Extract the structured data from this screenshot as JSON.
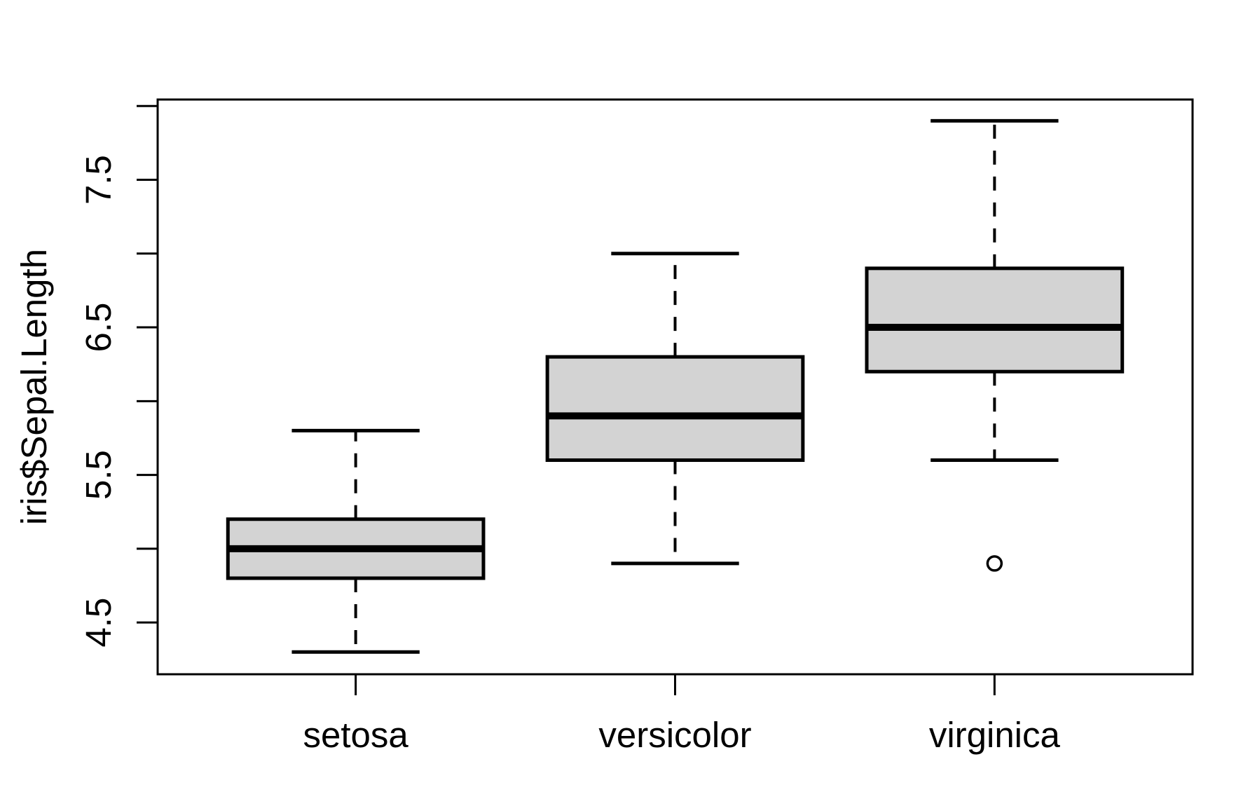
{
  "chart_data": {
    "type": "boxplot",
    "title": "",
    "xlabel": "",
    "ylabel": "iris$Sepal.Length",
    "categories": [
      "setosa",
      "versicolor",
      "virginica"
    ],
    "series": [
      {
        "name": "setosa",
        "lower_whisker": 4.3,
        "q1": 4.8,
        "median": 5.0,
        "q3": 5.2,
        "upper_whisker": 5.8,
        "outliers": []
      },
      {
        "name": "versicolor",
        "lower_whisker": 4.9,
        "q1": 5.6,
        "median": 5.9,
        "q3": 6.3,
        "upper_whisker": 7.0,
        "outliers": []
      },
      {
        "name": "virginica",
        "lower_whisker": 5.6,
        "q1": 6.2,
        "median": 6.5,
        "q3": 6.9,
        "upper_whisker": 7.9,
        "outliers": [
          4.9
        ]
      }
    ],
    "y_ticks": [
      {
        "value": 4.5,
        "label": "4.5"
      },
      {
        "value": 5.0,
        "label": ""
      },
      {
        "value": 5.5,
        "label": "5.5"
      },
      {
        "value": 6.0,
        "label": ""
      },
      {
        "value": 6.5,
        "label": "6.5"
      },
      {
        "value": 7.0,
        "label": ""
      },
      {
        "value": 7.5,
        "label": "7.5"
      },
      {
        "value": 8.0,
        "label": ""
      }
    ],
    "ylim": [
      4.149,
      8.044
    ],
    "grid": false,
    "legend": null,
    "colors": {
      "box_fill": "#d3d3d3",
      "stroke": "#000000",
      "background": "#ffffff"
    }
  }
}
